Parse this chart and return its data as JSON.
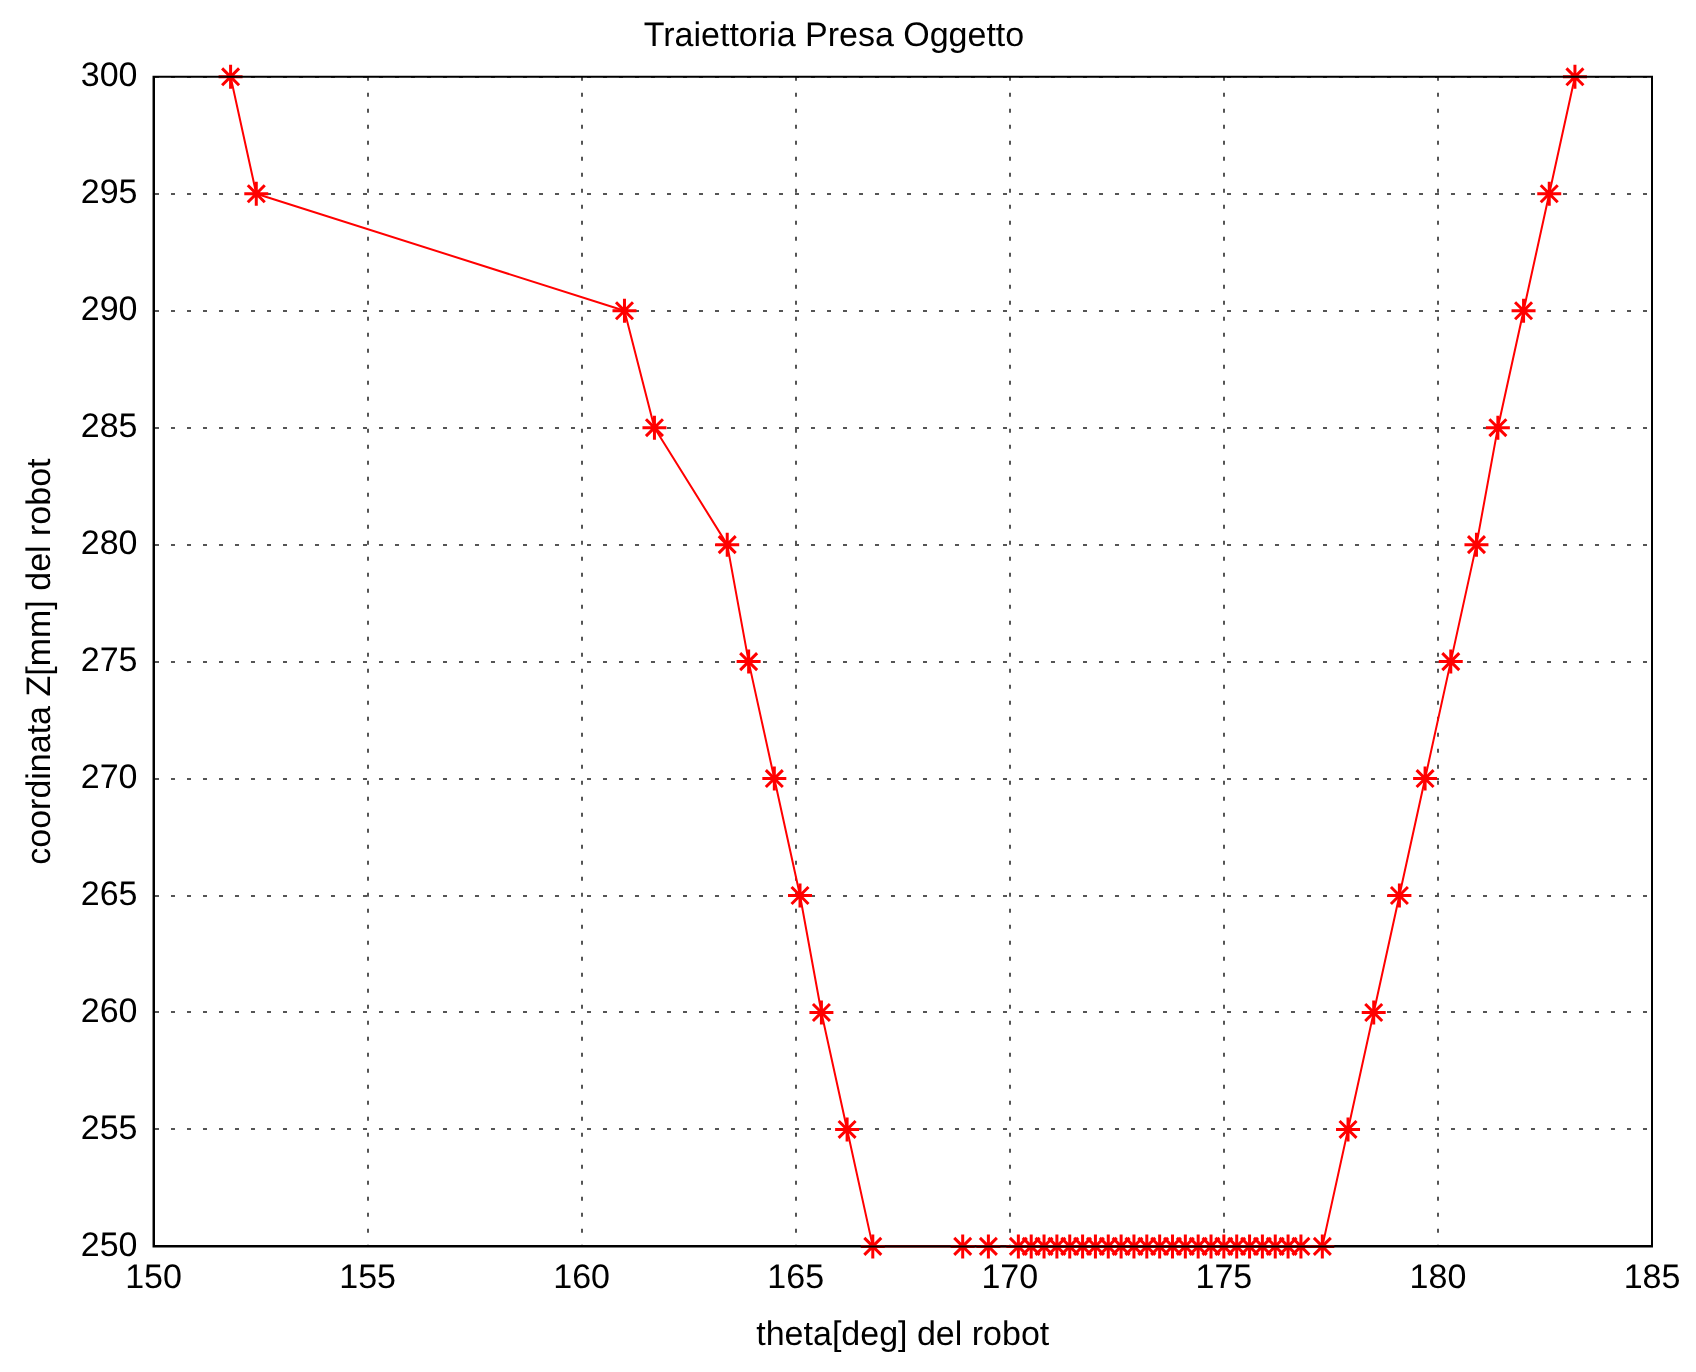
{
  "chart_data": {
    "type": "line",
    "title": "Traiettoria Presa Oggetto",
    "xlabel": "theta[deg] del robot",
    "ylabel": "coordinata Z[mm] del robot",
    "xlim": [
      150,
      185
    ],
    "xticks": [
      150,
      155,
      160,
      165,
      170,
      175,
      180,
      185
    ],
    "ylim": [
      250,
      300
    ],
    "yticks": [
      250,
      255,
      260,
      265,
      270,
      275,
      280,
      285,
      290,
      295,
      300
    ],
    "grid": true,
    "legend": false,
    "marker": "cross",
    "line_style": "solid",
    "series": [
      {
        "color": "#ff0000",
        "x": [
          151.8,
          152.4,
          161.0,
          161.7,
          163.4,
          163.9,
          164.5,
          165.1,
          165.6,
          166.2,
          166.8,
          168.9,
          169.5,
          170.2,
          170.5,
          170.8,
          171.1,
          171.4,
          171.7,
          172.0,
          172.3,
          172.6,
          172.9,
          173.2,
          173.5,
          173.8,
          174.1,
          174.4,
          174.7,
          175.0,
          175.3,
          175.6,
          175.9,
          176.2,
          176.5,
          176.8,
          177.3,
          177.9,
          178.5,
          179.1,
          179.7,
          180.3,
          180.9,
          181.4,
          182.0,
          182.6,
          183.2
        ],
        "values": [
          300,
          295,
          290,
          285,
          280,
          275,
          270,
          265,
          260,
          255,
          250,
          250,
          250,
          250,
          250,
          250,
          250,
          250,
          250,
          250,
          250,
          250,
          250,
          250,
          250,
          250,
          250,
          250,
          250,
          250,
          250,
          250,
          250,
          250,
          250,
          250,
          250,
          255,
          260,
          265,
          270,
          275,
          280,
          285,
          290,
          295,
          300
        ]
      }
    ]
  }
}
